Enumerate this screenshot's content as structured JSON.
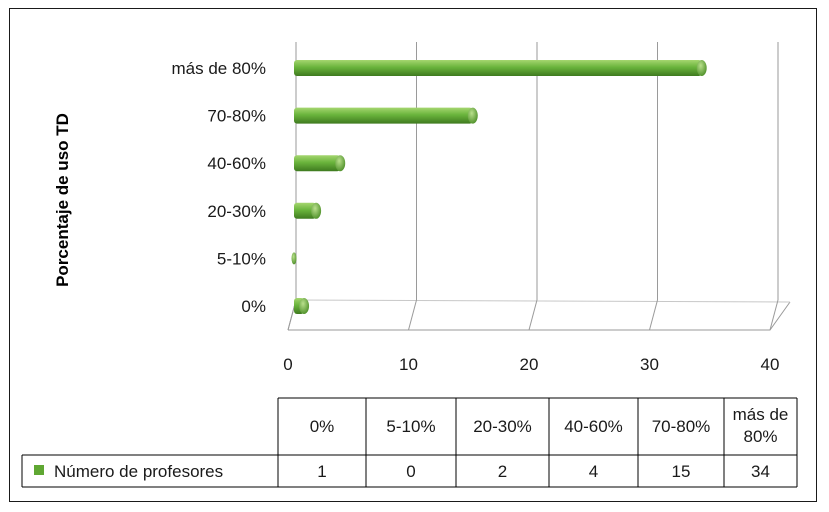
{
  "chart_data": {
    "type": "bar",
    "orientation": "horizontal",
    "categories": [
      "0%",
      "5-10%",
      "20-30%",
      "40-60%",
      "70-80%",
      "más de 80%"
    ],
    "table_headers": [
      "0%",
      "5-10%",
      "20-30%",
      "40-60%",
      "70-80%",
      "más de\n80%"
    ],
    "series": [
      {
        "name": "Número de profesores",
        "values": [
          1,
          0,
          2,
          4,
          15,
          34
        ],
        "color": "#5fa732"
      }
    ],
    "title": "",
    "xlabel": "",
    "ylabel": "Porcentaje de uso TD",
    "xlim": [
      0,
      40
    ],
    "xticks": [
      0,
      10,
      20,
      30,
      40
    ],
    "grid": true,
    "legend": "data-table"
  }
}
